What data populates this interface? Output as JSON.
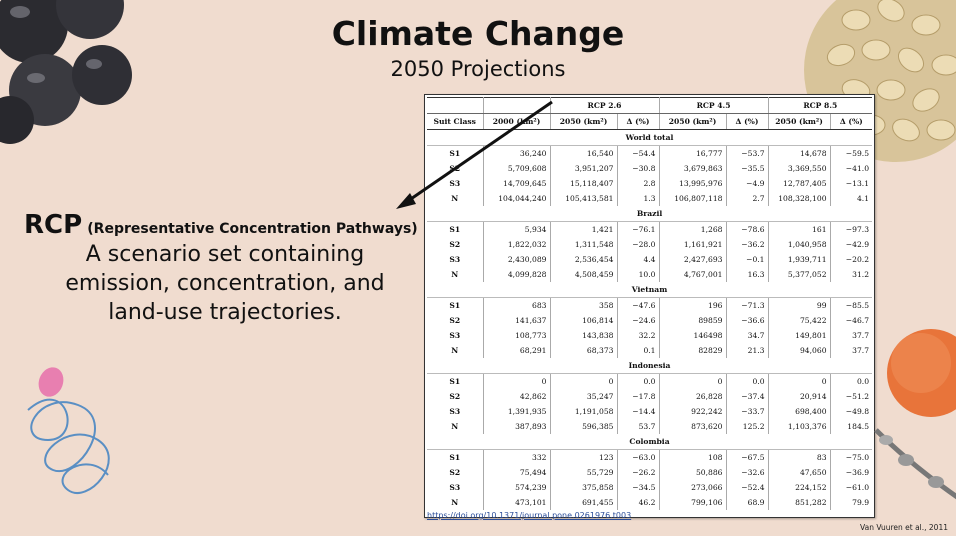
{
  "title": "Climate Change",
  "subtitle": "2050 Projections",
  "rcp": {
    "abbr": "RCP",
    "expansion": "(Representative Concentration Pathways)",
    "description_lines": [
      "A scenario set containing",
      "emission, concentration, and",
      "land-use trajectories."
    ]
  },
  "table": {
    "group_headers": [
      "RCP 2.6",
      "RCP 4.5",
      "RCP 8.5"
    ],
    "col_headers": [
      "Suit Class",
      "2000 (km²)",
      "2050 (km²)",
      "Δ (%)",
      "2050 (km²)",
      "Δ (%)",
      "2050 (km²)",
      "Δ (%)"
    ],
    "sections": [
      {
        "name": "World total",
        "rows": [
          [
            "S1",
            "36,240",
            "16,540",
            "−54.4",
            "16,777",
            "−53.7",
            "14,678",
            "−59.5"
          ],
          [
            "S2",
            "5,709,608",
            "3,951,207",
            "−30.8",
            "3,679,863",
            "−35.5",
            "3,369,550",
            "−41.0"
          ],
          [
            "S3",
            "14,709,645",
            "15,118,407",
            "2.8",
            "13,995,976",
            "−4.9",
            "12,787,405",
            "−13.1"
          ],
          [
            "N",
            "104,044,240",
            "105,413,581",
            "1.3",
            "106,807,118",
            "2.7",
            "108,328,100",
            "4.1"
          ]
        ]
      },
      {
        "name": "Brazil",
        "rows": [
          [
            "S1",
            "5,934",
            "1,421",
            "−76.1",
            "1,268",
            "−78.6",
            "161",
            "−97.3"
          ],
          [
            "S2",
            "1,822,032",
            "1,311,548",
            "−28.0",
            "1,161,921",
            "−36.2",
            "1,040,958",
            "−42.9"
          ],
          [
            "S3",
            "2,430,089",
            "2,536,454",
            "4.4",
            "2,427,693",
            "−0.1",
            "1,939,711",
            "−20.2"
          ],
          [
            "N",
            "4,099,828",
            "4,508,459",
            "10.0",
            "4,767,001",
            "16.3",
            "5,377,052",
            "31.2"
          ]
        ]
      },
      {
        "name": "Vietnam",
        "rows": [
          [
            "S1",
            "683",
            "358",
            "−47.6",
            "196",
            "−71.3",
            "99",
            "−85.5"
          ],
          [
            "S2",
            "141,637",
            "106,814",
            "−24.6",
            "89859",
            "−36.6",
            "75,422",
            "−46.7"
          ],
          [
            "S3",
            "108,773",
            "143,838",
            "32.2",
            "146498",
            "34.7",
            "149,801",
            "37.7"
          ],
          [
            "N",
            "68,291",
            "68,373",
            "0.1",
            "82829",
            "21.3",
            "94,060",
            "37.7"
          ]
        ]
      },
      {
        "name": "Indonesia",
        "rows": [
          [
            "S1",
            "0",
            "0",
            "0.0",
            "0",
            "0.0",
            "0",
            "0.0"
          ],
          [
            "S2",
            "42,862",
            "35,247",
            "−17.8",
            "26,828",
            "−37.4",
            "20,914",
            "−51.2"
          ],
          [
            "S3",
            "1,391,935",
            "1,191,058",
            "−14.4",
            "922,242",
            "−33.7",
            "698,400",
            "−49.8"
          ],
          [
            "N",
            "387,893",
            "596,385",
            "53.7",
            "873,620",
            "125.2",
            "1,103,376",
            "184.5"
          ]
        ]
      },
      {
        "name": "Colombia",
        "rows": [
          [
            "S1",
            "332",
            "123",
            "−63.0",
            "108",
            "−67.5",
            "83",
            "−75.0"
          ],
          [
            "S2",
            "75,494",
            "55,729",
            "−26.2",
            "50,886",
            "−32.6",
            "47,650",
            "−36.9"
          ],
          [
            "S3",
            "574,239",
            "375,858",
            "−34.5",
            "273,066",
            "−52.4",
            "224,152",
            "−61.0"
          ],
          [
            "N",
            "473,101",
            "691,455",
            "46.2",
            "799,106",
            "68.9",
            "851,282",
            "79.9"
          ]
        ]
      }
    ]
  },
  "source_url": "https://doi.org/10.1371/journal.pone.0261976.t003",
  "credit": "Van Vuuren et al., 2011",
  "colors": {
    "background": "#f0dccf",
    "link": "#2a4d9a",
    "pink_blob": "#e87fb0",
    "orange_blob": "#e8743a",
    "scribble": "#5a8fc4"
  },
  "decorations": [
    "acai-berries-image",
    "coffee-beans-image",
    "pink-blob",
    "blue-scribble",
    "orange-blob",
    "coffee-branch"
  ]
}
